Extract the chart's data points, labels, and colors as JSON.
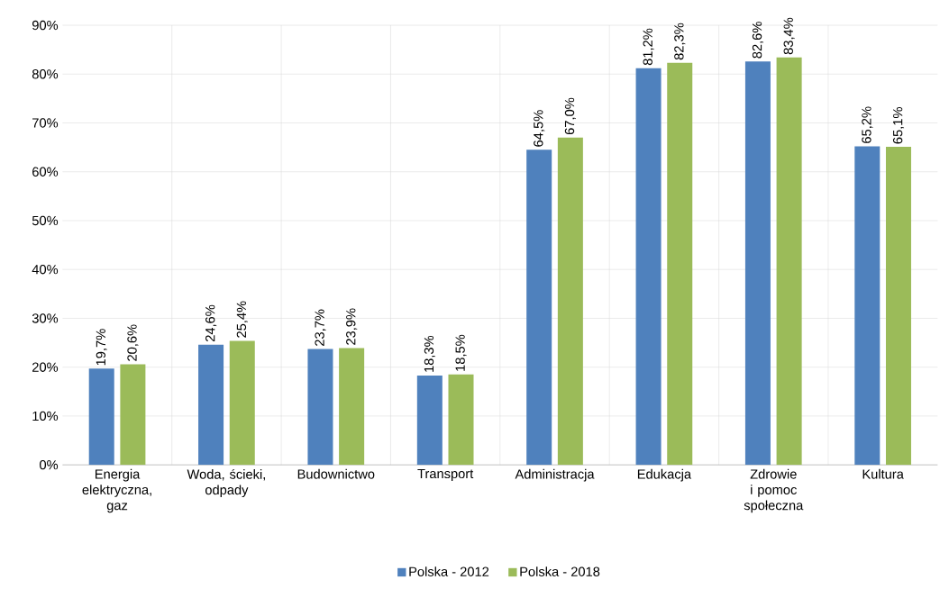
{
  "chart_data": {
    "type": "bar",
    "categories": [
      "Energia elektryczna, gaz",
      "Woda, ścieki, odpady",
      "Budownictwo",
      "Transport",
      "Administracja",
      "Edukacja",
      "Zdrowie i pomoc społeczna",
      "Kultura"
    ],
    "series": [
      {
        "name": "Polska - 2012",
        "color": "#4f81bd",
        "values": [
          19.7,
          24.6,
          23.7,
          18.3,
          64.5,
          81.2,
          82.6,
          65.2
        ],
        "value_labels": [
          "19,7%",
          "24,6%",
          "23,7%",
          "18,3%",
          "64,5%",
          "81,2%",
          "82,6%",
          "65,2%"
        ]
      },
      {
        "name": "Polska - 2018",
        "color": "#9bbb59",
        "values": [
          20.6,
          25.4,
          23.9,
          18.5,
          67.0,
          82.3,
          83.4,
          65.1
        ],
        "value_labels": [
          "20,6%",
          "25,4%",
          "23,9%",
          "18,5%",
          "67,0%",
          "82,3%",
          "83,4%",
          "65,1%"
        ]
      }
    ],
    "ylim": [
      0,
      90
    ],
    "yticks": [
      {
        "value": 0,
        "label": "0%"
      },
      {
        "value": 10,
        "label": "10%"
      },
      {
        "value": 20,
        "label": "20%"
      },
      {
        "value": 30,
        "label": "30%"
      },
      {
        "value": 40,
        "label": "40%"
      },
      {
        "value": 50,
        "label": "50%"
      },
      {
        "value": 60,
        "label": "60%"
      },
      {
        "value": 70,
        "label": "70%"
      },
      {
        "value": 80,
        "label": "80%"
      },
      {
        "value": 90,
        "label": "90%"
      }
    ],
    "grid": true,
    "legend": "bottom"
  }
}
